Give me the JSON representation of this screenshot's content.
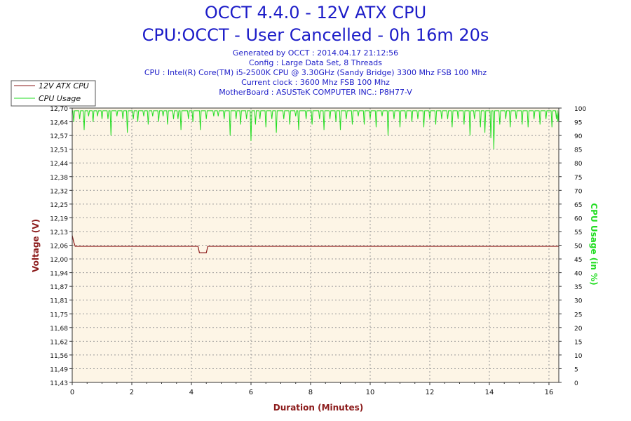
{
  "titles": {
    "line1": "OCCT 4.4.0 - 12V ATX CPU",
    "line2": "CPU:OCCT - User Cancelled - 0h 16m 20s"
  },
  "info": [
    "Generated by OCCT : 2014.04.17 21:12:56",
    "Config : Large Data Set, 8 Threads",
    "CPU : Intel(R) Core(TM) i5-2500K CPU @ 3.30GHz (Sandy Bridge) 3300 Mhz FSB 100 Mhz",
    "Current clock : 3600 Mhz FSB 100 Mhz",
    "MotherBoard : ASUSTeK COMPUTER INC.: P8H77-V"
  ],
  "colors": {
    "voltage": "#8b1a1a",
    "cpu": "#22dd22",
    "plot_bg": "#fdf5e6",
    "title": "#1c1cc8"
  },
  "chart_data": {
    "type": "line",
    "xlabel": "Duration (Minutes)",
    "ylabel_left": "Voltage (V)",
    "ylabel_right": "CPU Usage (in %)",
    "xlim": [
      0,
      16.33
    ],
    "ylim_left": [
      11.43,
      12.7
    ],
    "ylim_right": [
      0,
      100
    ],
    "x_ticks": [
      "0",
      "2",
      "4",
      "6",
      "8",
      "10",
      "12",
      "14",
      "16"
    ],
    "y_left_ticks": [
      "11,43",
      "11,49",
      "11,56",
      "11,62",
      "11,68",
      "11,75",
      "11,81",
      "11,87",
      "11,94",
      "12,00",
      "12,06",
      "12,13",
      "12,19",
      "12,25",
      "12,32",
      "12,38",
      "12,44",
      "12,51",
      "12,57",
      "12,64",
      "12,70"
    ],
    "y_right_ticks": [
      "0",
      "5",
      "10",
      "15",
      "20",
      "25",
      "30",
      "35",
      "40",
      "45",
      "50",
      "55",
      "60",
      "65",
      "70",
      "75",
      "80",
      "85",
      "90",
      "95",
      "100"
    ],
    "legend": {
      "position": "top-left",
      "entries": [
        "12V ATX CPU",
        "CPU Usage"
      ]
    },
    "grid": true,
    "series": [
      {
        "name": "12V ATX CPU",
        "axis": "left",
        "x": [
          0,
          0.05,
          0.1,
          4.22,
          4.27,
          4.5,
          4.55,
          16.33
        ],
        "y": [
          12.11,
          12.08,
          12.06,
          12.06,
          12.03,
          12.03,
          12.06,
          12.06
        ]
      },
      {
        "name": "CPU Usage",
        "axis": "right",
        "baseline": 99,
        "dips": [
          [
            0.05,
            95
          ],
          [
            0.25,
            96
          ],
          [
            0.4,
            92
          ],
          [
            0.55,
            97
          ],
          [
            0.7,
            95
          ],
          [
            0.85,
            97
          ],
          [
            1.0,
            96
          ],
          [
            1.2,
            96
          ],
          [
            1.3,
            90
          ],
          [
            1.5,
            97
          ],
          [
            1.7,
            96
          ],
          [
            1.85,
            91
          ],
          [
            2.05,
            96
          ],
          [
            2.2,
            95
          ],
          [
            2.4,
            97
          ],
          [
            2.55,
            94
          ],
          [
            2.7,
            97
          ],
          [
            2.9,
            95
          ],
          [
            3.05,
            97
          ],
          [
            3.2,
            94
          ],
          [
            3.4,
            96
          ],
          [
            3.55,
            96
          ],
          [
            3.65,
            92
          ],
          [
            3.9,
            96
          ],
          [
            4.05,
            95
          ],
          [
            4.3,
            92
          ],
          [
            4.5,
            96
          ],
          [
            4.75,
            97
          ],
          [
            4.9,
            97
          ],
          [
            5.1,
            96
          ],
          [
            5.3,
            90
          ],
          [
            5.5,
            96
          ],
          [
            5.65,
            94
          ],
          [
            5.85,
            96
          ],
          [
            6.0,
            88
          ],
          [
            6.15,
            94
          ],
          [
            6.3,
            96
          ],
          [
            6.5,
            93
          ],
          [
            6.7,
            96
          ],
          [
            6.85,
            91
          ],
          [
            7.1,
            96
          ],
          [
            7.3,
            94
          ],
          [
            7.5,
            97
          ],
          [
            7.6,
            92
          ],
          [
            7.85,
            96
          ],
          [
            8.05,
            94
          ],
          [
            8.3,
            96
          ],
          [
            8.45,
            92
          ],
          [
            8.65,
            96
          ],
          [
            8.85,
            95
          ],
          [
            9.0,
            92
          ],
          [
            9.2,
            96
          ],
          [
            9.4,
            94
          ],
          [
            9.6,
            97
          ],
          [
            9.8,
            94
          ],
          [
            10.0,
            96
          ],
          [
            10.2,
            93
          ],
          [
            10.4,
            97
          ],
          [
            10.6,
            90
          ],
          [
            10.8,
            96
          ],
          [
            11.0,
            93
          ],
          [
            11.2,
            96
          ],
          [
            11.4,
            95
          ],
          [
            11.6,
            96
          ],
          [
            11.8,
            93
          ],
          [
            12.0,
            96
          ],
          [
            12.2,
            94
          ],
          [
            12.4,
            96
          ],
          [
            12.6,
            96
          ],
          [
            12.75,
            93
          ],
          [
            12.95,
            96
          ],
          [
            13.15,
            94
          ],
          [
            13.35,
            90
          ],
          [
            13.5,
            96
          ],
          [
            13.7,
            93
          ],
          [
            13.85,
            91
          ],
          [
            14.05,
            89
          ],
          [
            14.15,
            85
          ],
          [
            14.35,
            94
          ],
          [
            14.55,
            96
          ],
          [
            14.7,
            93
          ],
          [
            14.9,
            96
          ],
          [
            15.1,
            94
          ],
          [
            15.3,
            93
          ],
          [
            15.5,
            96
          ],
          [
            15.7,
            94
          ],
          [
            15.9,
            96
          ],
          [
            16.1,
            93
          ],
          [
            16.25,
            96
          ],
          [
            16.3,
            95
          ]
        ]
      }
    ]
  }
}
